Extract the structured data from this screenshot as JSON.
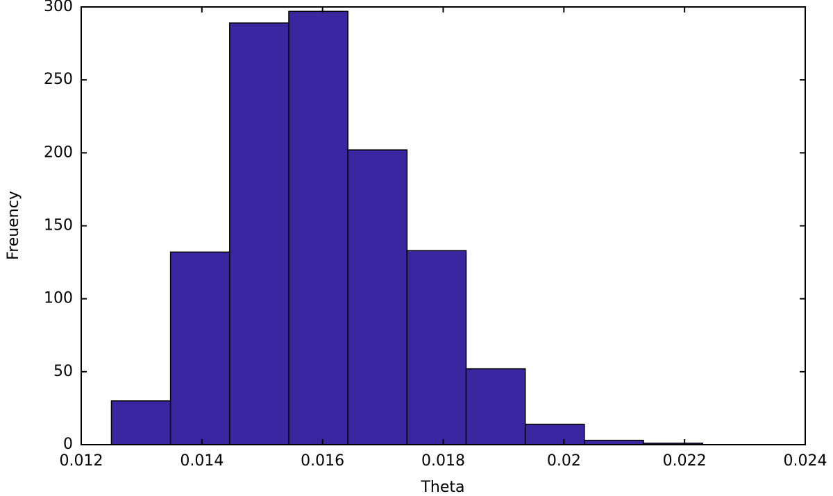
{
  "chart_data": {
    "type": "histogram",
    "x_label": "Theta",
    "y_label": "Freuency",
    "bins": [
      0.0125,
      0.01348,
      0.01446,
      0.01544,
      0.01642,
      0.0174,
      0.01838,
      0.01936,
      0.02034,
      0.02132,
      0.0223
    ],
    "values": [
      30,
      132,
      289,
      297,
      202,
      133,
      52,
      14,
      3,
      1
    ],
    "color": "#3a27a0",
    "xlim": [
      0.012,
      0.024
    ],
    "xticks": [
      0.012,
      0.014,
      0.016,
      0.018,
      0.02,
      0.022,
      0.024
    ],
    "ylim": [
      0,
      300
    ],
    "yticks": [
      0,
      50,
      100,
      150,
      200,
      250,
      300
    ]
  }
}
